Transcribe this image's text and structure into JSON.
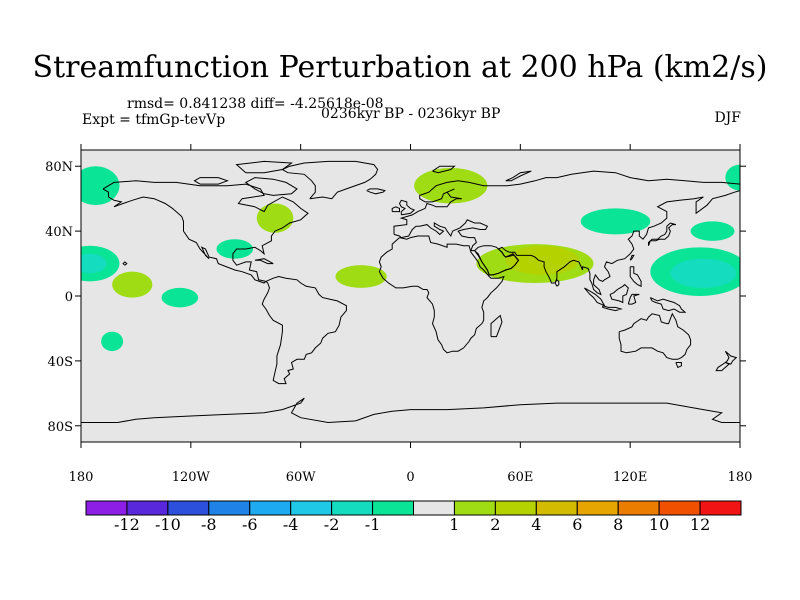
{
  "title": "Streamfunction Perturbation at 200 hPa (km2/s)",
  "stats_line": "rmsd= 0.841238 diff= -4.25618e-08",
  "experiment": "Expt = tfmGp-tevVp",
  "period": "0236kyr BP - 0236kyr BP",
  "season": "DJF",
  "map": {
    "lon_range": [
      -180,
      180
    ],
    "lat_range": [
      -90,
      90
    ],
    "background_color": "#e6e6e6",
    "x_ticks": [
      {
        "value": -180,
        "label": "180"
      },
      {
        "value": -120,
        "label": "120W"
      },
      {
        "value": -60,
        "label": "60W"
      },
      {
        "value": 0,
        "label": "0"
      },
      {
        "value": 60,
        "label": "60E"
      },
      {
        "value": 120,
        "label": "120E"
      },
      {
        "value": 180,
        "label": "180"
      }
    ],
    "y_ticks": [
      {
        "value": 80,
        "label": "80N"
      },
      {
        "value": 40,
        "label": "40N"
      },
      {
        "value": 0,
        "label": "0"
      },
      {
        "value": -40,
        "label": "40S"
      },
      {
        "value": -80,
        "label": "80S"
      }
    ],
    "anomalies": [
      {
        "lon": -172,
        "lat": 68,
        "rlon": 13,
        "rlat": 12,
        "level": -1
      },
      {
        "lon": -175,
        "lat": 20,
        "rlon": 16,
        "rlat": 11,
        "level": -1
      },
      {
        "lon": -175,
        "lat": 20,
        "rlon": 9,
        "rlat": 6,
        "level": -2
      },
      {
        "lon": -152,
        "lat": 7,
        "rlon": 11,
        "rlat": 8,
        "level": 1
      },
      {
        "lon": -163,
        "lat": -28,
        "rlon": 6,
        "rlat": 6,
        "level": -1
      },
      {
        "lon": -126,
        "lat": -1,
        "rlon": 10,
        "rlat": 6,
        "level": -1
      },
      {
        "lon": -96,
        "lat": 29,
        "rlon": 10,
        "rlat": 6,
        "level": -1
      },
      {
        "lon": -74,
        "lat": 48,
        "rlon": 10,
        "rlat": 9,
        "level": 1
      },
      {
        "lon": 22,
        "lat": 68,
        "rlon": 20,
        "rlat": 11,
        "level": 1
      },
      {
        "lon": -27,
        "lat": 12,
        "rlon": 14,
        "rlat": 7,
        "level": 1
      },
      {
        "lon": 68,
        "lat": 20,
        "rlon": 32,
        "rlat": 12,
        "level": 1
      },
      {
        "lon": 72,
        "lat": 22,
        "rlon": 20,
        "rlat": 9,
        "level": 2
      },
      {
        "lon": 112,
        "lat": 46,
        "rlon": 19,
        "rlat": 8,
        "level": -1
      },
      {
        "lon": 165,
        "lat": 40,
        "rlon": 12,
        "rlat": 6,
        "level": -1
      },
      {
        "lon": 158,
        "lat": 15,
        "rlon": 27,
        "rlat": 15,
        "level": -1
      },
      {
        "lon": 160,
        "lat": 14,
        "rlon": 18,
        "rlat": 9,
        "level": -2
      },
      {
        "lon": 180,
        "lat": 73,
        "rlon": 8,
        "rlat": 8,
        "level": -1
      }
    ]
  },
  "colorbar": {
    "colors": [
      "#8c1ee6",
      "#5a28dc",
      "#2d50dc",
      "#1e82e6",
      "#1eaaf0",
      "#1ec8e6",
      "#14dcbe",
      "#0ae496",
      "#e6e6e6",
      "#a0dc14",
      "#b4d200",
      "#d2bb00",
      "#e6a500",
      "#eb7d00",
      "#f05000",
      "#f01414"
    ],
    "labels": [
      "-12",
      "-10",
      "-8",
      "-6",
      "-4",
      "-2",
      "-1",
      "1",
      "2",
      "4",
      "6",
      "8",
      "10",
      "12"
    ]
  }
}
